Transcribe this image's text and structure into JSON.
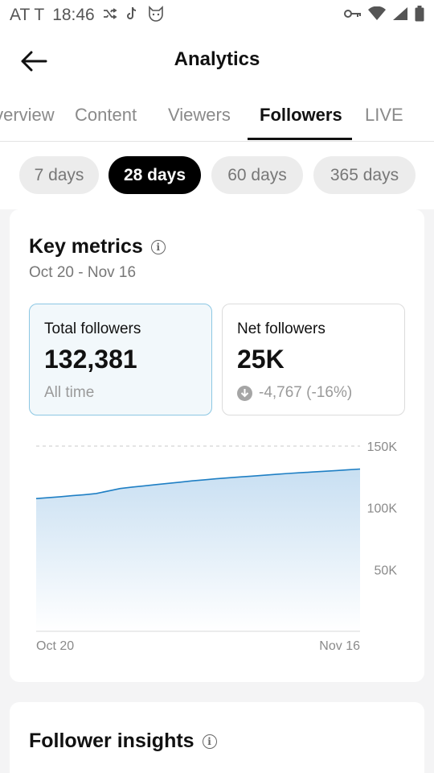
{
  "status_bar": {
    "carrier": "AT T",
    "time": "18:46"
  },
  "header": {
    "title": "Analytics"
  },
  "tabs": [
    {
      "label": "Overview",
      "active": false
    },
    {
      "label": "Content",
      "active": false
    },
    {
      "label": "Viewers",
      "active": false
    },
    {
      "label": "Followers",
      "active": true
    },
    {
      "label": "LIVE",
      "active": false
    }
  ],
  "date_filters": [
    {
      "label": "7 days",
      "active": false
    },
    {
      "label": "28 days",
      "active": true
    },
    {
      "label": "60 days",
      "active": false
    },
    {
      "label": "365 days",
      "active": false
    }
  ],
  "key_metrics": {
    "title": "Key metrics",
    "date_range": "Oct 20 - Nov 16",
    "total_followers": {
      "label": "Total followers",
      "value": "132,381",
      "sub": "All time"
    },
    "net_followers": {
      "label": "Net followers",
      "value": "25K",
      "change": "-4,767 (-16%)"
    }
  },
  "chart_data": {
    "type": "area",
    "x_labels": [
      "Oct 20",
      "Nov 16"
    ],
    "y_ticks": [
      {
        "value": 150000,
        "label": "150K"
      },
      {
        "value": 100000,
        "label": "100K"
      },
      {
        "value": 50000,
        "label": "50K"
      }
    ],
    "ylim": [
      0,
      150000
    ],
    "grid": true,
    "series": [
      {
        "values": [
          107500,
          108200,
          109000,
          109800,
          110600,
          111600,
          113600,
          115600,
          116800,
          117800,
          118800,
          119800,
          120800,
          121800,
          122700,
          123500,
          124300,
          125000,
          125700,
          126400,
          127100,
          127800,
          128400,
          129000,
          129600,
          130200,
          130800,
          131400
        ]
      }
    ],
    "colors": {
      "line": "#1f7fc4",
      "fill_top": "#c8dff2",
      "fill_bottom": "#ffffff"
    }
  },
  "follower_insights": {
    "title": "Follower insights"
  }
}
